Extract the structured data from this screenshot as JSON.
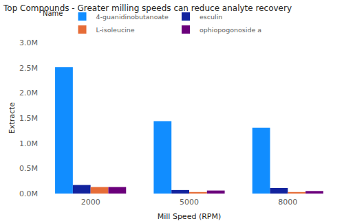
{
  "chart_data": {
    "type": "bar",
    "title": "Top Compounds - Greater milling speeds can reduce analyte recovery",
    "legend_title": "Name",
    "x_label": "Mill Speed (RPM)",
    "y_label": "Extracte",
    "categories": [
      "2000",
      "5000",
      "8000"
    ],
    "series": [
      {
        "name": "4-guanidinobutanoate",
        "color": "#118DFF",
        "values": [
          2510000,
          1440000,
          1310000
        ]
      },
      {
        "name": "esculin",
        "color": "#12239E",
        "values": [
          170000,
          70000,
          110000
        ]
      },
      {
        "name": "L-isoleucine",
        "color": "#E66C37",
        "values": [
          130000,
          30000,
          30000
        ]
      },
      {
        "name": "ophiopogonoside a",
        "color": "#6B007B",
        "values": [
          130000,
          60000,
          50000
        ]
      }
    ],
    "ylim": [
      0,
      3000000
    ],
    "yticks": [
      {
        "value": 0,
        "label": "0.0M"
      },
      {
        "value": 500000,
        "label": "0.5M"
      },
      {
        "value": 1000000,
        "label": "1.0M"
      },
      {
        "value": 1500000,
        "label": "1.5M"
      },
      {
        "value": 2000000,
        "label": "2.0M"
      },
      {
        "value": 2500000,
        "label": "2.5M"
      },
      {
        "value": 3000000,
        "label": "3.0M"
      }
    ],
    "grid": false,
    "legend": "top-left"
  }
}
